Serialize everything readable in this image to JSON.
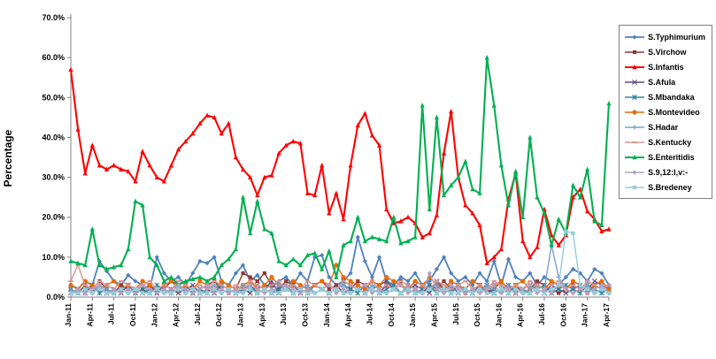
{
  "chart_data": {
    "type": "line",
    "title": "",
    "xlabel": "",
    "ylabel": "Percentage",
    "ylim": [
      0,
      70
    ],
    "y_ticks": [
      "0.0%",
      "10.0%",
      "20.0%",
      "30.0%",
      "40.0%",
      "50.0%",
      "60.0%",
      "70.0%"
    ],
    "x_tick_every": 3,
    "grid": false,
    "legend_position": "right",
    "x": [
      "Jan-11",
      "Feb-11",
      "Mar-11",
      "Apr-11",
      "May-11",
      "Jun-11",
      "Jul-11",
      "Aug-11",
      "Sep-11",
      "Oct-11",
      "Nov-11",
      "Dec-11",
      "Jan-12",
      "Feb-12",
      "Mar-12",
      "Apr-12",
      "May-12",
      "Jun-12",
      "Jul-12",
      "Aug-12",
      "Sep-12",
      "Oct-12",
      "Nov-12",
      "Dec-12",
      "Jan-13",
      "Feb-13",
      "Mar-13",
      "Apr-13",
      "May-13",
      "Jun-13",
      "Jul-13",
      "Aug-13",
      "Sep-13",
      "Oct-13",
      "Nov-13",
      "Dec-13",
      "Jan-14",
      "Feb-14",
      "Mar-14",
      "Apr-14",
      "May-14",
      "Jun-14",
      "Jul-14",
      "Aug-14",
      "Sep-14",
      "Oct-14",
      "Nov-14",
      "Dec-14",
      "Jan-15",
      "Feb-15",
      "Mar-15",
      "Apr-15",
      "May-15",
      "Jun-15",
      "Jul-15",
      "Aug-15",
      "Sep-15",
      "Oct-15",
      "Nov-15",
      "Dec-15",
      "Jan-16",
      "Feb-16",
      "Mar-16",
      "Apr-16",
      "May-16",
      "Jun-16",
      "Jul-16",
      "Aug-16",
      "Sep-16",
      "Oct-16",
      "Nov-16",
      "Dec-16",
      "Jan-17",
      "Feb-17",
      "Mar-17",
      "Apr-17"
    ],
    "series": [
      {
        "name": "S.Typhimurium",
        "color": "#4F81BD",
        "marker": "diamond",
        "line_width": 1.8,
        "values": [
          3,
          2,
          4,
          3,
          9,
          6.5,
          4,
          3,
          5.5,
          4,
          3,
          2,
          10,
          6,
          4,
          5,
          3,
          6,
          9,
          8.5,
          10,
          4,
          3,
          6,
          8,
          4,
          5.5,
          3,
          2.5,
          4,
          5,
          3,
          6,
          4,
          10,
          10.5,
          5,
          3,
          4,
          6,
          15,
          9,
          5,
          10,
          4,
          3,
          5,
          4,
          6,
          3,
          4,
          7,
          10,
          6,
          4,
          5,
          3,
          6,
          4,
          9,
          3,
          9.5,
          5,
          4,
          6,
          3,
          5,
          4,
          3,
          5,
          7,
          6,
          4,
          7,
          6,
          3
        ]
      },
      {
        "name": "S.Virchow",
        "color": "#943634",
        "marker": "square",
        "line_width": 1.4,
        "values": [
          2,
          1,
          3,
          2,
          4,
          2,
          1,
          3,
          2,
          1,
          2,
          3,
          1,
          2,
          4,
          3,
          2,
          1,
          2,
          3,
          4,
          2,
          1,
          2,
          6,
          5,
          4,
          6,
          3,
          2,
          4,
          3,
          2,
          1,
          3,
          4,
          2,
          3,
          1,
          2,
          4,
          3,
          2,
          1,
          3,
          2,
          4,
          3,
          2,
          1,
          3,
          2,
          4,
          2,
          3,
          1,
          2,
          3,
          1,
          2,
          4,
          2,
          3,
          1,
          2,
          4,
          3,
          2,
          1,
          2,
          3,
          2,
          1,
          3,
          2,
          1
        ]
      },
      {
        "name": "S.Infantis",
        "color": "#FF0000",
        "marker": "triangle",
        "line_width": 2.1,
        "values": [
          57,
          42,
          31,
          38,
          33,
          32,
          33,
          32,
          31.5,
          29,
          36.5,
          33,
          30,
          29,
          33,
          37,
          39,
          41,
          43.5,
          45.5,
          45,
          41,
          43.5,
          35,
          32,
          30,
          25.5,
          30,
          30.5,
          36,
          38,
          39,
          38.5,
          26,
          25.5,
          33,
          21,
          26,
          19.5,
          33,
          43,
          46,
          40.5,
          38,
          22,
          18.5,
          19,
          20,
          18.5,
          15,
          16,
          20.5,
          36,
          46.5,
          30,
          23,
          21,
          18,
          8.5,
          10,
          12,
          24.5,
          31,
          14,
          10,
          12.5,
          22,
          15.5,
          13,
          15.5,
          25,
          27,
          21.5,
          19.5,
          16.5,
          17
        ]
      },
      {
        "name": "S.Afula",
        "color": "#604A7B",
        "marker": "x",
        "line_width": 1.4,
        "values": [
          1,
          2,
          1,
          3,
          2,
          1,
          2,
          1,
          3,
          2,
          1,
          2,
          1,
          3,
          2,
          1,
          2,
          3,
          1,
          2,
          1,
          3,
          2,
          1,
          2,
          1,
          3,
          2,
          4,
          1,
          2,
          3,
          1,
          2,
          3,
          2,
          1,
          2,
          4,
          3,
          2,
          1,
          2,
          3,
          4,
          2,
          1,
          2,
          3,
          2,
          1,
          4,
          2,
          3,
          1,
          2,
          1,
          3,
          2,
          1,
          2,
          3,
          1,
          2,
          3,
          2,
          1,
          3,
          2,
          1,
          2,
          3,
          2,
          4,
          3,
          2
        ]
      },
      {
        "name": "S.Mbandaka",
        "color": "#31859C",
        "marker": "asterisk",
        "line_width": 1.4,
        "values": [
          2,
          1,
          2,
          3,
          1,
          2,
          1,
          2,
          3,
          1,
          2,
          1,
          3,
          2,
          1,
          2,
          3,
          1,
          2,
          1,
          2,
          3,
          2,
          1,
          2,
          3,
          1,
          2,
          1,
          2,
          3,
          1,
          2,
          1,
          3,
          2,
          1,
          2,
          3,
          2,
          1,
          3,
          2,
          1,
          2,
          3,
          1,
          2,
          1,
          2,
          3,
          1,
          2,
          1,
          3,
          2,
          1,
          2,
          3,
          1,
          2,
          1,
          3,
          2,
          1,
          2,
          3,
          1,
          2,
          3,
          2,
          1,
          3,
          2,
          1,
          2
        ]
      },
      {
        "name": "S.Montevideo",
        "color": "#E46C0A",
        "marker": "circle",
        "line_width": 1.4,
        "values": [
          3,
          2,
          4,
          3,
          2,
          3,
          4,
          2,
          3,
          2,
          4,
          3,
          2,
          3,
          4,
          2,
          3,
          2,
          4,
          3,
          2,
          4,
          3,
          2,
          3,
          4,
          2,
          3,
          5,
          3,
          2,
          4,
          3,
          2,
          3,
          4,
          3,
          8,
          5,
          4,
          3,
          2,
          4,
          3,
          5,
          4,
          3,
          2,
          4,
          3,
          5,
          3,
          2,
          4,
          3,
          2,
          4,
          3,
          2,
          3,
          4,
          2,
          3,
          4,
          2,
          3,
          2,
          4,
          3,
          2,
          4,
          3,
          2,
          3,
          4,
          2
        ]
      },
      {
        "name": "S.Hadar",
        "color": "#7BA0CD",
        "marker": "plus",
        "line_width": 1.4,
        "values": [
          2,
          1,
          2,
          1,
          3,
          2,
          1,
          2,
          1,
          2,
          3,
          1,
          2,
          1,
          2,
          3,
          1,
          2,
          1,
          2,
          3,
          1,
          2,
          1,
          3,
          2,
          1,
          2,
          1,
          3,
          2,
          1,
          2,
          3,
          1,
          2,
          1,
          2,
          3,
          1,
          2,
          1,
          3,
          2,
          1,
          2,
          1,
          3,
          2,
          1,
          2,
          3,
          1,
          2,
          3,
          1,
          2,
          1,
          3,
          2,
          1,
          3,
          2,
          1,
          2,
          3,
          2,
          13,
          5,
          2,
          1,
          2,
          3,
          1,
          2,
          1
        ]
      },
      {
        "name": "S.Kentucky",
        "color": "#D99694",
        "marker": "dash",
        "line_width": 1.4,
        "values": [
          4,
          8,
          3,
          2,
          4,
          3,
          2,
          4,
          3,
          2,
          3,
          4,
          2,
          3,
          2,
          4,
          3,
          2,
          3,
          2,
          4,
          3,
          2,
          3,
          2,
          4,
          3,
          2,
          3,
          4,
          2,
          3,
          2,
          4,
          3,
          2,
          3,
          2,
          4,
          3,
          2,
          3,
          4,
          2,
          3,
          2,
          4,
          3,
          2,
          3,
          2,
          4,
          3,
          2,
          3,
          4,
          2,
          3,
          2,
          4,
          3,
          2,
          3,
          2,
          4,
          3,
          2,
          3,
          4,
          2,
          3,
          2,
          4,
          3,
          2,
          3
        ]
      },
      {
        "name": "S.Enteritidis",
        "color": "#00B050",
        "marker": "triangle",
        "line_width": 2.1,
        "values": [
          9,
          8.5,
          8,
          17,
          8,
          7,
          7.5,
          8,
          12,
          24,
          23,
          10,
          8,
          4,
          5,
          3,
          4,
          4.5,
          5,
          4,
          5,
          8,
          9.5,
          12,
          25,
          16,
          24,
          17,
          16,
          9,
          8,
          9.5,
          8,
          10.5,
          11,
          7,
          11.5,
          5,
          13,
          14,
          20,
          14,
          15,
          14.5,
          14,
          20,
          13.5,
          14,
          15,
          48,
          22,
          45,
          25.5,
          28,
          30,
          34,
          27,
          26,
          60,
          48,
          33,
          23,
          31.5,
          20,
          40,
          25,
          21,
          13,
          19.5,
          16,
          28,
          25,
          32,
          19,
          18,
          48.5
        ]
      },
      {
        "name": "S.9,12:l,v:-",
        "color": "#B2A2C7",
        "marker": "diamond",
        "line_width": 1.4,
        "values": [
          1,
          2,
          1,
          2,
          3,
          1,
          2,
          1,
          2,
          1,
          3,
          2,
          1,
          2,
          1,
          3,
          2,
          1,
          2,
          3,
          1,
          2,
          1,
          2,
          1,
          3,
          2,
          1,
          2,
          1,
          3,
          2,
          1,
          2,
          1,
          2,
          3,
          1,
          2,
          1,
          2,
          3,
          1,
          2,
          1,
          2,
          3,
          1,
          2,
          1,
          6,
          2,
          1,
          3,
          2,
          1,
          2,
          1,
          2,
          3,
          1,
          2,
          1,
          2,
          3,
          1,
          2,
          1,
          3,
          2,
          1,
          2,
          1,
          2,
          3,
          1
        ]
      },
      {
        "name": "S.Bredeney",
        "color": "#92CDDC",
        "marker": "square",
        "line_width": 1.4,
        "values": [
          1,
          1,
          2,
          1,
          2,
          1,
          1,
          2,
          1,
          2,
          1,
          1,
          2,
          1,
          1,
          2,
          1,
          2,
          1,
          1,
          2,
          1,
          2,
          1,
          1,
          2,
          1,
          2,
          1,
          1,
          2,
          1,
          2,
          1,
          1,
          2,
          1,
          2,
          1,
          1,
          2,
          1,
          2,
          1,
          1,
          2,
          1,
          2,
          1,
          1,
          2,
          1,
          2,
          1,
          1,
          2,
          1,
          2,
          1,
          1,
          2,
          1,
          2,
          1,
          1,
          2,
          1,
          2,
          3,
          16.5,
          16,
          3,
          2,
          1,
          2,
          1
        ]
      }
    ]
  }
}
